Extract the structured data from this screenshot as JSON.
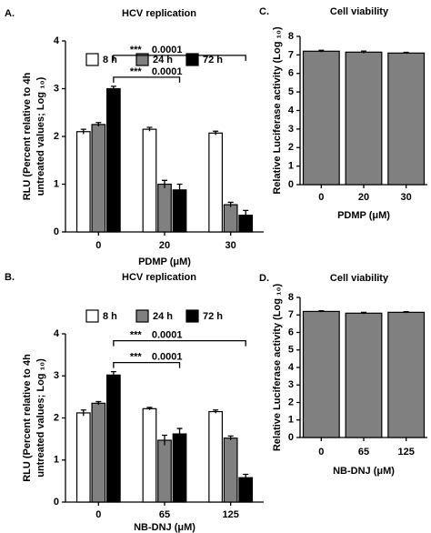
{
  "chart_data": [
    {
      "type": "bar",
      "panel_label": "A.",
      "title": "HCV replication",
      "categories": [
        "0",
        "20",
        "30"
      ],
      "series": [
        {
          "name": "8 h",
          "color": "#ffffff",
          "values": [
            2.1,
            2.15,
            2.07
          ],
          "errors": [
            0.05,
            0.04,
            0.04
          ]
        },
        {
          "name": "24 h",
          "color": "#808080",
          "values": [
            2.25,
            1.0,
            0.57
          ],
          "errors": [
            0.04,
            0.08,
            0.05
          ]
        },
        {
          "name": "72 h",
          "color": "#000000",
          "values": [
            3.0,
            0.88,
            0.35
          ],
          "errors": [
            0.05,
            0.12,
            0.1
          ]
        }
      ],
      "ylim": [
        0,
        4
      ],
      "yticks": [
        0,
        1,
        2,
        3,
        4
      ],
      "xlabel": "PDMP (μM)",
      "ylabel": [
        "RLU (Percent relative to 4h",
        "untreated values; Log ₁₀)"
      ],
      "annotations": [
        {
          "stars": "***",
          "p_value": "0.0001"
        },
        {
          "stars": "***",
          "p_value": "0.0001"
        }
      ]
    },
    {
      "type": "bar",
      "panel_label": "B.",
      "title": "HCV replication",
      "categories": [
        "0",
        "65",
        "125"
      ],
      "series": [
        {
          "name": "8 h",
          "color": "#ffffff",
          "values": [
            2.12,
            2.22,
            2.15
          ],
          "errors": [
            0.07,
            0.03,
            0.04
          ]
        },
        {
          "name": "24 h",
          "color": "#808080",
          "values": [
            2.35,
            1.47,
            1.52
          ],
          "errors": [
            0.04,
            0.12,
            0.05
          ]
        },
        {
          "name": "72 h",
          "color": "#000000",
          "values": [
            3.02,
            1.62,
            0.58
          ],
          "errors": [
            0.08,
            0.13,
            0.08
          ]
        }
      ],
      "ylim": [
        0,
        4
      ],
      "yticks": [
        0,
        1,
        2,
        3,
        4
      ],
      "xlabel": "NB-DNJ (μM)",
      "ylabel": [
        "RLU (Percent relative to 4h",
        "untreated values; Log ₁₀)"
      ],
      "annotations": [
        {
          "stars": "***",
          "p_value": "0.0001"
        },
        {
          "stars": "***",
          "p_value": "0.0001"
        }
      ]
    },
    {
      "type": "bar",
      "panel_label": "C.",
      "title": "Cell viability",
      "categories": [
        "0",
        "20",
        "30"
      ],
      "series": [
        {
          "color": "#808080",
          "values": [
            7.2,
            7.15,
            7.1
          ],
          "errors": [
            0.05,
            0.06,
            0.04
          ]
        }
      ],
      "ylim": [
        0,
        8
      ],
      "yticks": [
        0,
        1,
        2,
        3,
        4,
        5,
        6,
        7,
        8
      ],
      "xlabel": "PDMP (μM)",
      "ylabel": [
        "Relative Luciferase activity (Log ₁₀)"
      ]
    },
    {
      "type": "bar",
      "panel_label": "D.",
      "title": "Cell viability",
      "categories": [
        "0",
        "65",
        "125"
      ],
      "series": [
        {
          "color": "#808080",
          "values": [
            7.2,
            7.1,
            7.15
          ],
          "errors": [
            0.04,
            0.05,
            0.04
          ]
        }
      ],
      "ylim": [
        0,
        8
      ],
      "yticks": [
        0,
        1,
        2,
        3,
        4,
        5,
        6,
        7,
        8
      ],
      "xlabel": "NB-DNJ (μM)",
      "ylabel": [
        "Relative Luciferase activity (Log ₁₀)"
      ]
    }
  ]
}
